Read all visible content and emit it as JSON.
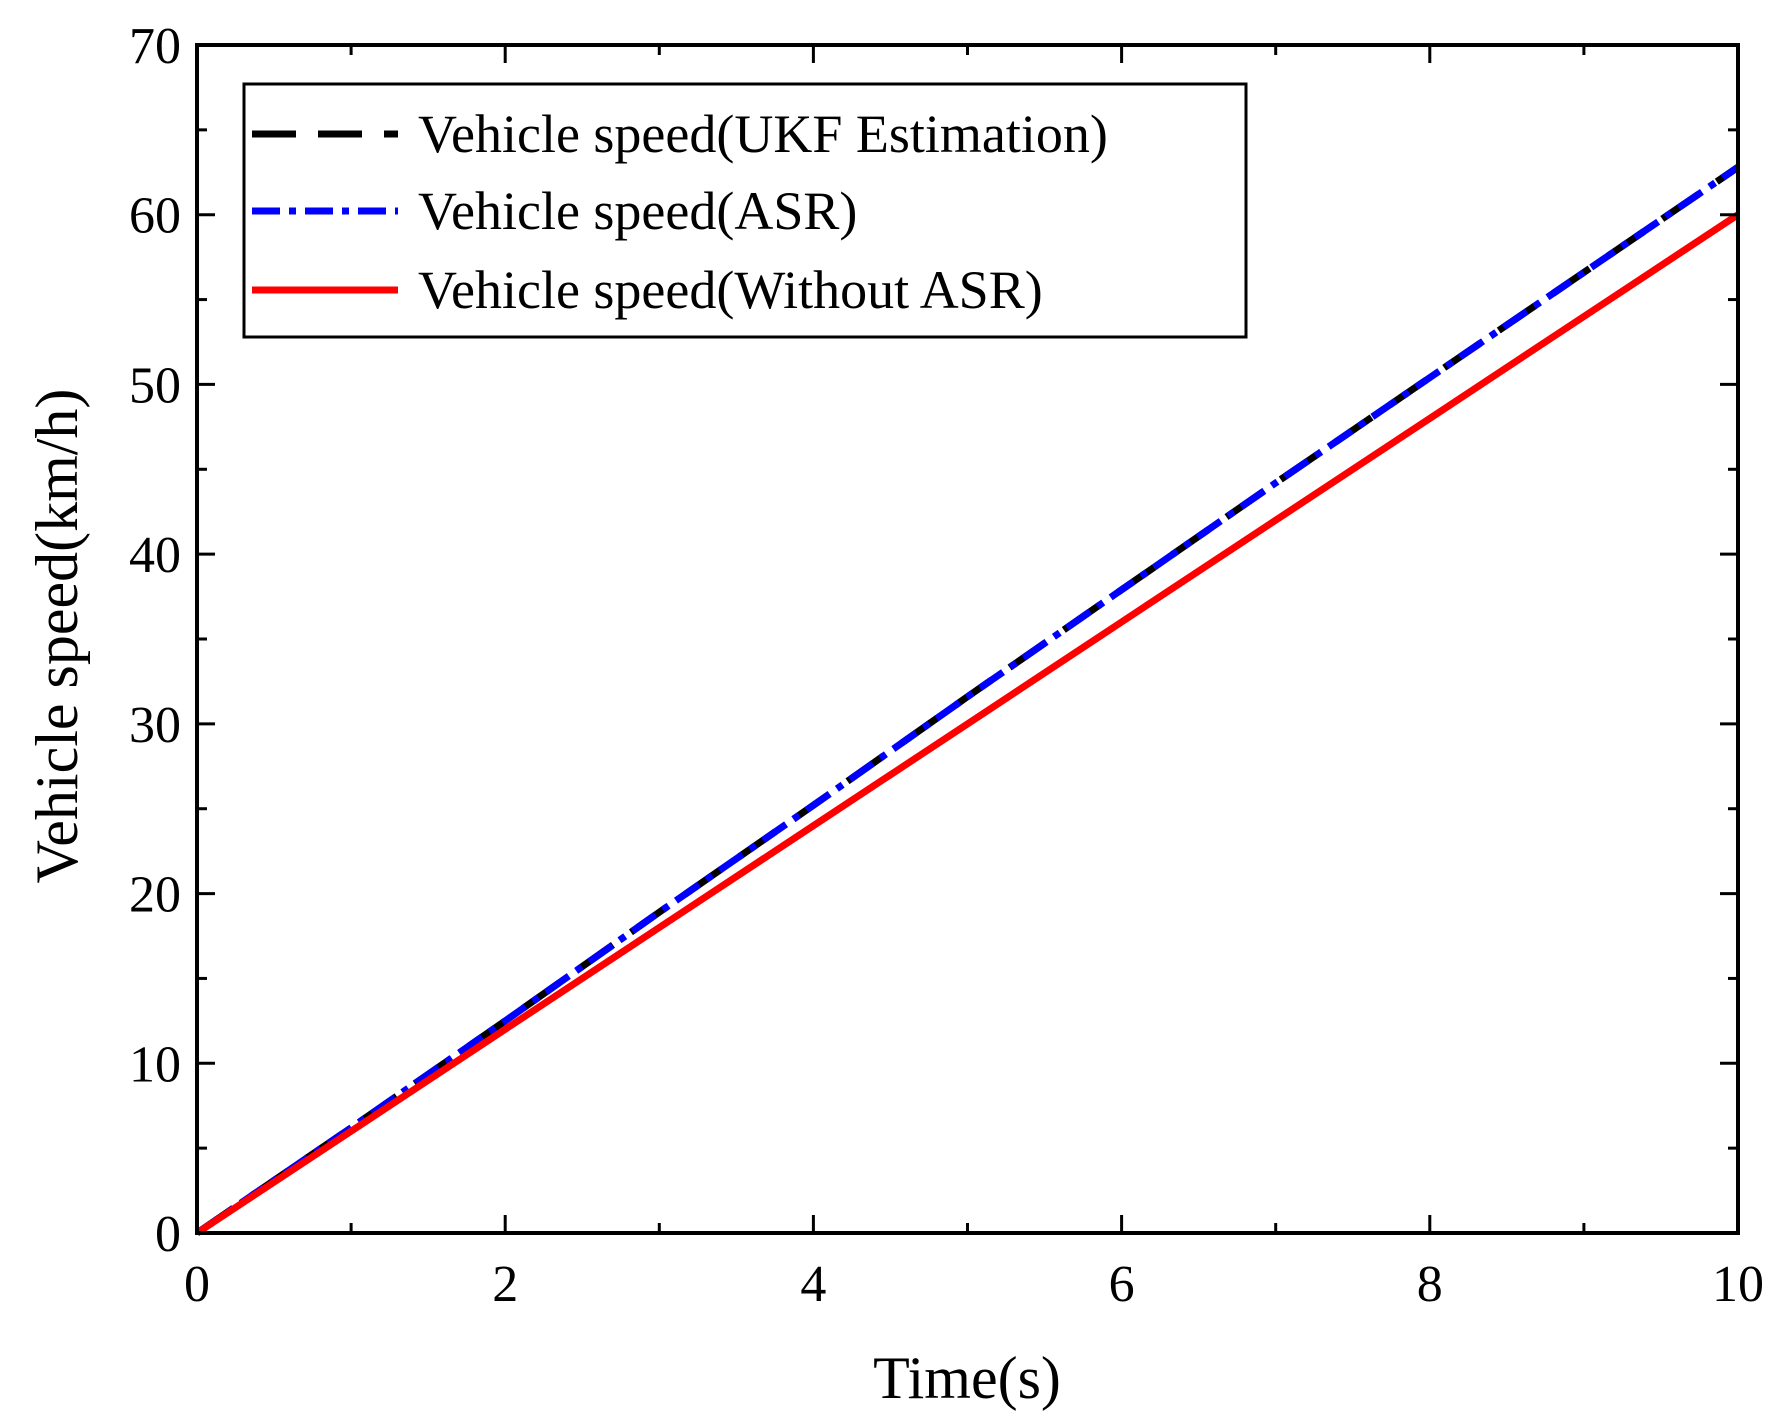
{
  "chart_data": {
    "type": "line",
    "title": "",
    "xlabel": "Time(s)",
    "ylabel": "Vehicle speed(km/h)",
    "xlim": [
      0,
      10
    ],
    "ylim": [
      0,
      70
    ],
    "xticks": [
      0,
      2,
      4,
      6,
      8,
      10
    ],
    "yticks": [
      0,
      10,
      20,
      30,
      40,
      50,
      60,
      70
    ],
    "grid": false,
    "legend": "top-left",
    "x": [
      0,
      1,
      2,
      3,
      4,
      5,
      6,
      7,
      8,
      9,
      10
    ],
    "series": [
      {
        "name": "Vehicle speed(UKF Estimation)",
        "color": "#000000",
        "style": "dashed",
        "values": [
          0,
          6.2,
          12.5,
          18.9,
          25.2,
          31.6,
          37.9,
          44.2,
          50.4,
          56.6,
          62.8
        ]
      },
      {
        "name": "Vehicle speed(ASR)",
        "color": "#0000ff",
        "style": "dashdot",
        "values": [
          0,
          6.2,
          12.5,
          18.9,
          25.2,
          31.6,
          37.9,
          44.2,
          50.4,
          56.6,
          62.8
        ]
      },
      {
        "name": "Vehicle speed(Without ASR)",
        "color": "#ff0000",
        "style": "solid",
        "values": [
          0,
          6.0,
          12.0,
          18.0,
          24.0,
          30.0,
          36.0,
          42.0,
          48.0,
          54.0,
          60.0
        ]
      }
    ]
  }
}
